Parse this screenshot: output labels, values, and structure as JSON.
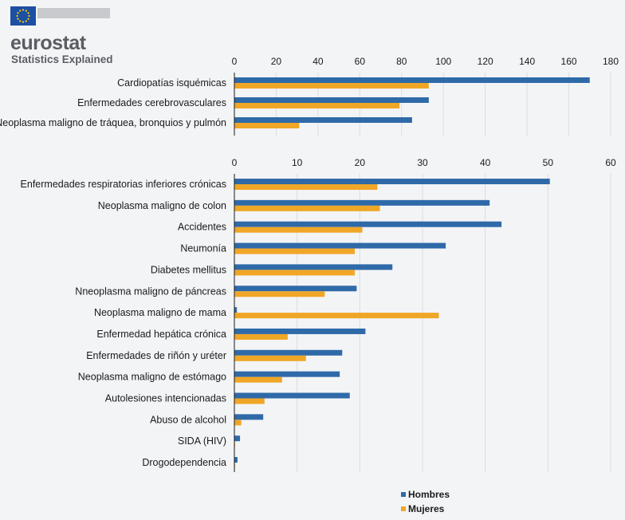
{
  "header": {
    "logo_word": "eurostat",
    "logo_sub": "Statistics Explained"
  },
  "colors": {
    "hombres": "#2f6aa8",
    "mujeres": "#f0a626",
    "grid": "#dcdde0",
    "axis": "#1a1a1a"
  },
  "chart_data": [
    {
      "type": "bar",
      "orientation": "horizontal",
      "categories": [
        "Cardiopatías isquémicas",
        "Enfermedades cerebrovasculares",
        "Neoplasma maligno de tráquea, bronquios y pulmón"
      ],
      "series": [
        {
          "name": "Hombres",
          "values": [
            170,
            93,
            85
          ]
        },
        {
          "name": "Mujeres",
          "values": [
            93,
            79,
            31
          ]
        }
      ],
      "xlim": [
        0,
        180
      ],
      "ticks": [
        "0",
        "20",
        "40",
        "60",
        "80",
        "100",
        "120",
        "140",
        "160",
        "180"
      ],
      "grid": true
    },
    {
      "type": "bar",
      "orientation": "horizontal",
      "categories": [
        "Enfermedades respiratorias inferiores crónicas",
        "Neoplasma maligno de colon",
        "Accidentes",
        "Neumonía",
        "Diabetes mellitus",
        "Nneoplasma maligno de páncreas",
        "Neoplasma maligno de mama",
        "Enfermedad hepática crónica",
        "Enfermedades de riñón y uréter",
        "Neoplasma maligno de estómago",
        "Autolesiones intencionadas",
        "Abuso de alcohol",
        "SIDA (HIV)",
        "Drogodependencia"
      ],
      "series": [
        {
          "name": "Hombres",
          "values": [
            50.3,
            40.7,
            42.6,
            33.7,
            25.2,
            19.5,
            0.4,
            20.9,
            17.2,
            16.8,
            18.4,
            4.6,
            0.9,
            0.5
          ]
        },
        {
          "name": "Mujeres",
          "values": [
            22.8,
            23.2,
            20.4,
            19.2,
            19.2,
            14.4,
            32.6,
            8.5,
            11.4,
            7.6,
            4.8,
            1.1,
            0.1,
            0.1
          ]
        }
      ],
      "xlim": [
        0,
        60
      ],
      "ticks": [
        "0",
        "10",
        "20",
        "30",
        "40",
        "50",
        "60"
      ],
      "grid": true
    }
  ],
  "legend": {
    "items": [
      {
        "name": "Hombres",
        "color": "#2f6aa8"
      },
      {
        "name": "Mujeres",
        "color": "#f0a626"
      }
    ]
  }
}
